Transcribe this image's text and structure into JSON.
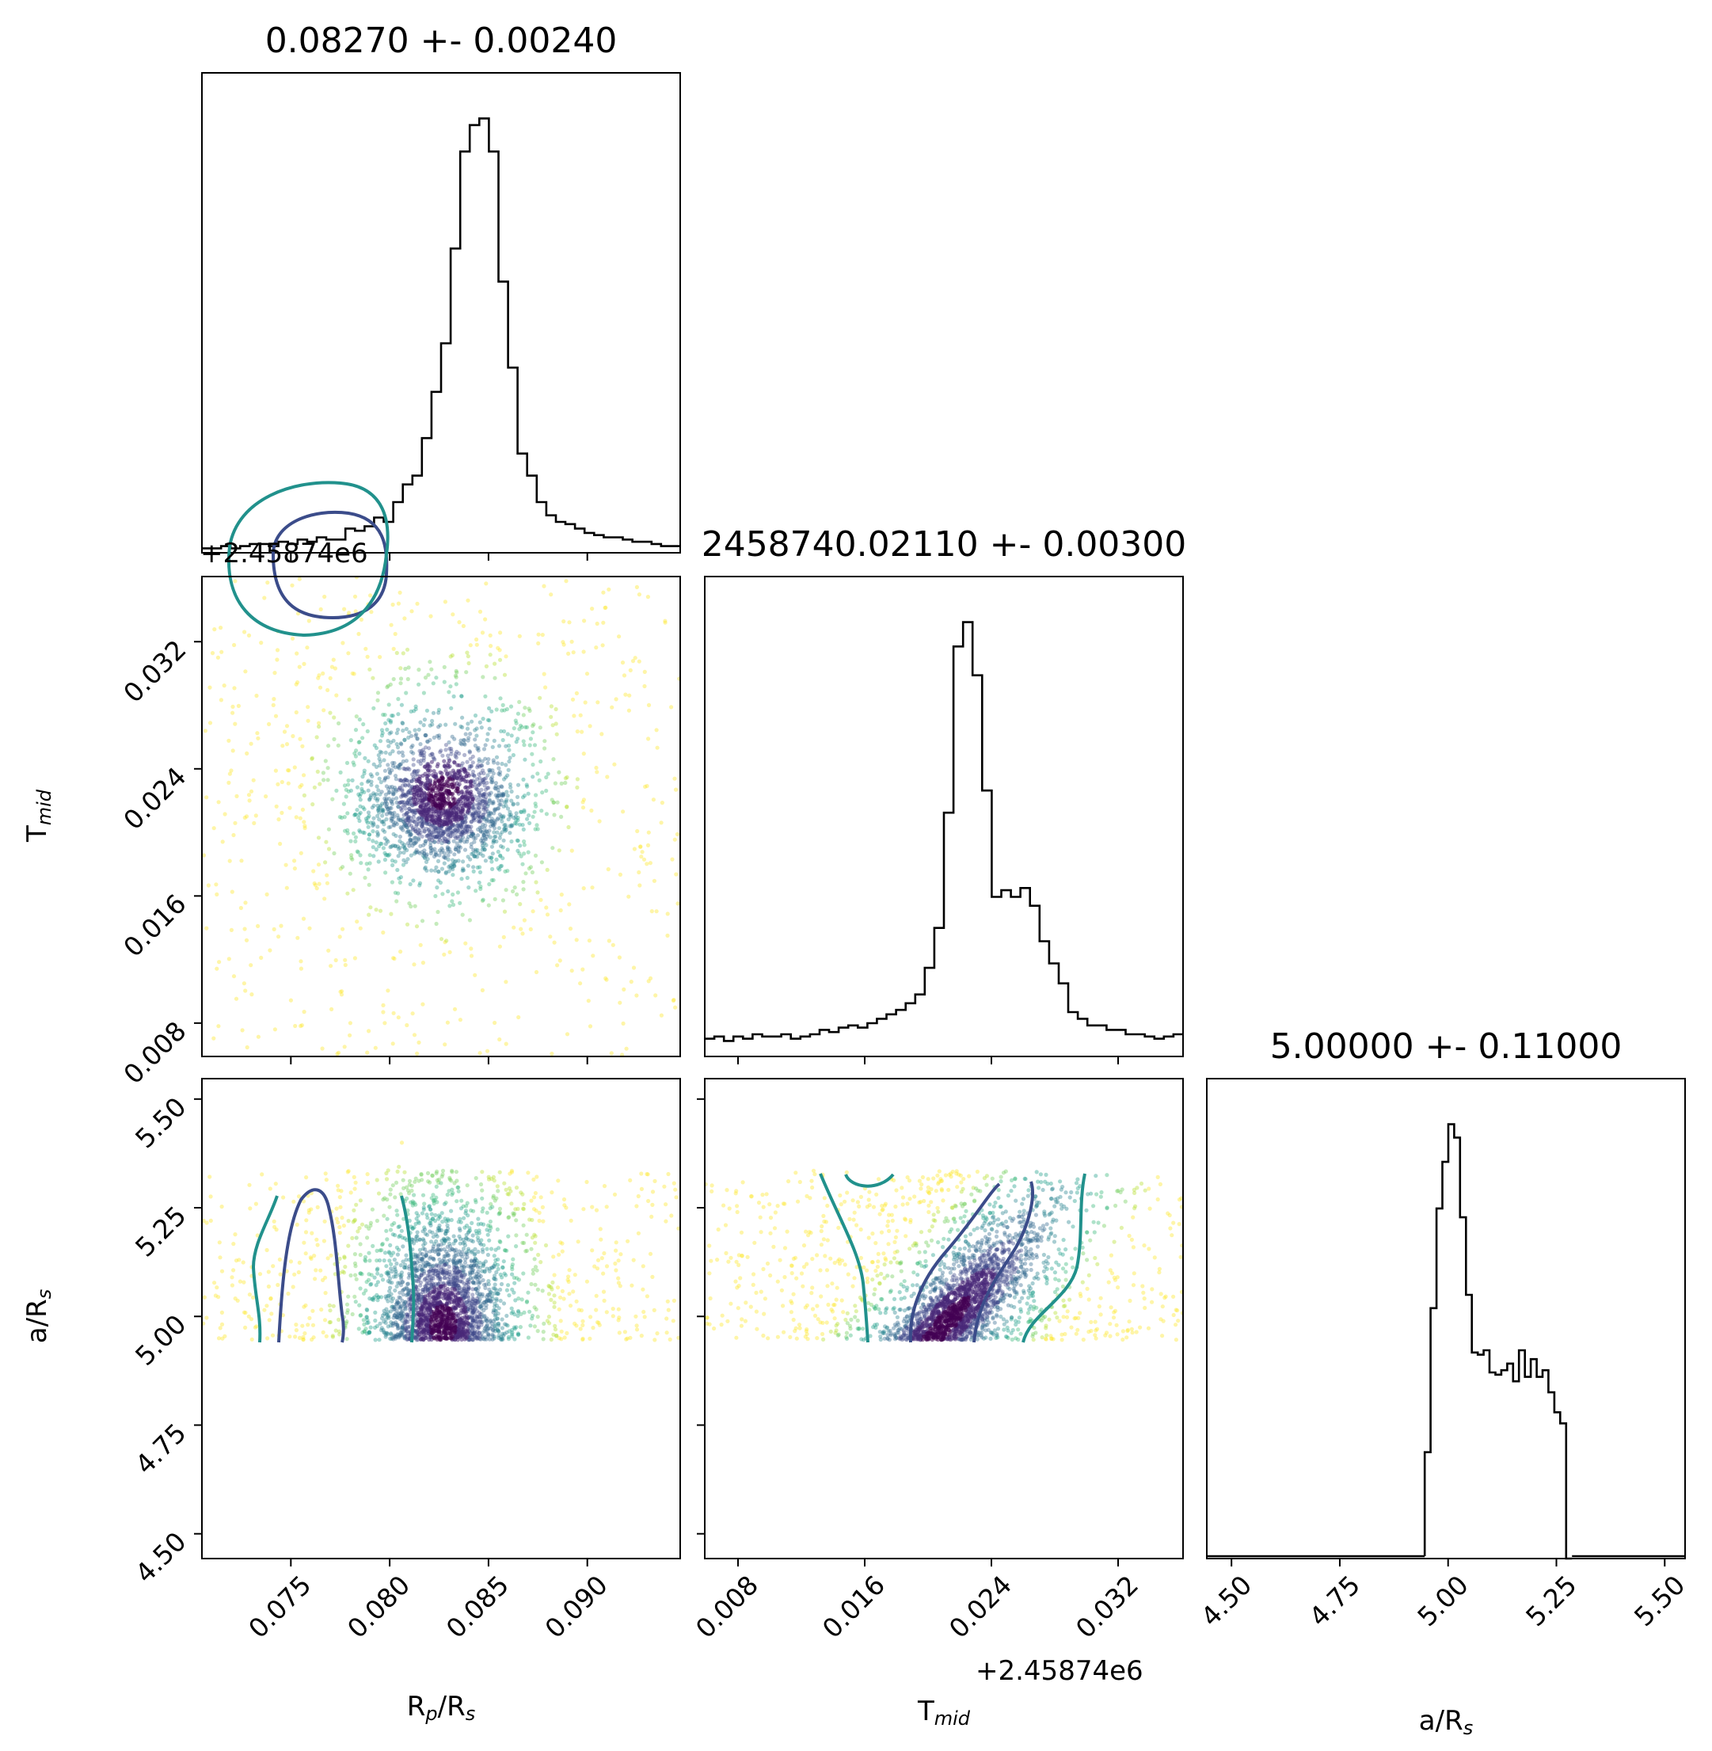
{
  "chart_data": {
    "type": "corner",
    "parameters": [
      {
        "name": "Rp/Rs",
        "label_main": "R",
        "label_sub": "p",
        "label_rest": "/R",
        "label_sub2": "s",
        "range": [
          0.0705,
          0.0947
        ],
        "ticks": [
          "0.075",
          "0.080",
          "0.085",
          "0.090"
        ],
        "tick_values": [
          0.075,
          0.08,
          0.085,
          0.09
        ],
        "title": "0.08270 +- 0.00240",
        "offset": "",
        "hist": {
          "bin_edges_start": 0.0705,
          "bin_width": 0.000484,
          "counts": [
            2,
            2,
            3,
            2,
            3,
            4,
            4,
            3,
            5,
            4,
            6,
            5,
            7,
            6,
            6,
            11,
            10,
            12,
            16,
            14,
            23,
            31,
            35,
            52,
            73,
            95,
            138,
            182,
            194,
            197,
            182,
            123,
            84,
            45,
            35,
            23,
            17,
            14,
            13,
            11,
            9,
            8,
            7,
            7,
            6,
            5,
            5,
            4,
            3,
            3
          ]
        }
      },
      {
        "name": "Tmid",
        "label_main": "T",
        "label_sub": "mid",
        "range": [
          0.0059,
          0.0361
        ],
        "ticks": [
          "0.008",
          "0.016",
          "0.024",
          "0.032"
        ],
        "tick_values": [
          0.008,
          0.016,
          0.024,
          0.032
        ],
        "title": "2458740.02110 +- 0.00300",
        "offset": "+2.45874e6",
        "hist": {
          "bin_edges_start": 0.0059,
          "bin_width": 0.000604,
          "counts": [
            8,
            9,
            7,
            9,
            8,
            10,
            9,
            9,
            10,
            8,
            9,
            10,
            12,
            11,
            13,
            14,
            13,
            15,
            17,
            19,
            21,
            24,
            28,
            40,
            58,
            110,
            185,
            196,
            172,
            120,
            72,
            75,
            72,
            76,
            68,
            52,
            42,
            33,
            20,
            17,
            14,
            14,
            12,
            12,
            10,
            10,
            9,
            8,
            9,
            10
          ]
        }
      },
      {
        "name": "a/Rs",
        "label_main": "a/R",
        "label_sub": "s",
        "range": [
          4.443,
          5.547
        ],
        "ticks": [
          "4.50",
          "4.75",
          "5.00",
          "5.25",
          "5.50"
        ],
        "tick_values": [
          4.5,
          4.75,
          5.0,
          5.25,
          5.5
        ],
        "title": "5.00000 +- 0.11000",
        "offset": "",
        "hist": {
          "bin_edges_start": 4.946,
          "bin_width": 0.0136,
          "counts": [
            48,
            113,
            158,
            179,
            196,
            190,
            154,
            119,
            93,
            92,
            94,
            84,
            83,
            85,
            88,
            80,
            94,
            82,
            90,
            82,
            85,
            75,
            66,
            61,
            0
          ]
        }
      }
    ],
    "contour_levels": [
      "1-sigma",
      "2-sigma"
    ],
    "contour_colors": [
      "#3b4c8a",
      "#21918c"
    ],
    "point_colormap": "viridis",
    "point_colors": [
      "#fde725",
      "#b5de2b",
      "#6ece58",
      "#35b779",
      "#1f9e89",
      "#26828e",
      "#31688e",
      "#3e4989",
      "#482878",
      "#440154"
    ],
    "histogram_color": "#000000"
  }
}
